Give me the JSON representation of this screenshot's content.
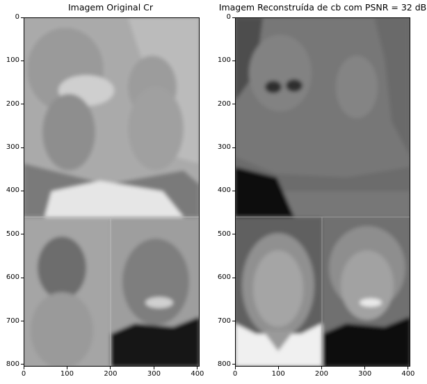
{
  "figure": {
    "left_title": "Imagem Original Cr",
    "right_title": "Imagem Reconstruída de cb com PSNR = 32 dB"
  },
  "axes": {
    "y_ticks": [
      "0",
      "100",
      "200",
      "300",
      "400",
      "500",
      "600",
      "700",
      "800"
    ],
    "x_ticks": [
      "0",
      "100",
      "200",
      "300",
      "400"
    ]
  },
  "colors": {
    "left_bg": "#a9a9a9",
    "left_top_light": "#bdbdbd",
    "left_shirt": "#e8e8e8",
    "right_bg": "#6e6e6e",
    "right_dark": "#111111",
    "right_light": "#f2f2f2"
  }
}
